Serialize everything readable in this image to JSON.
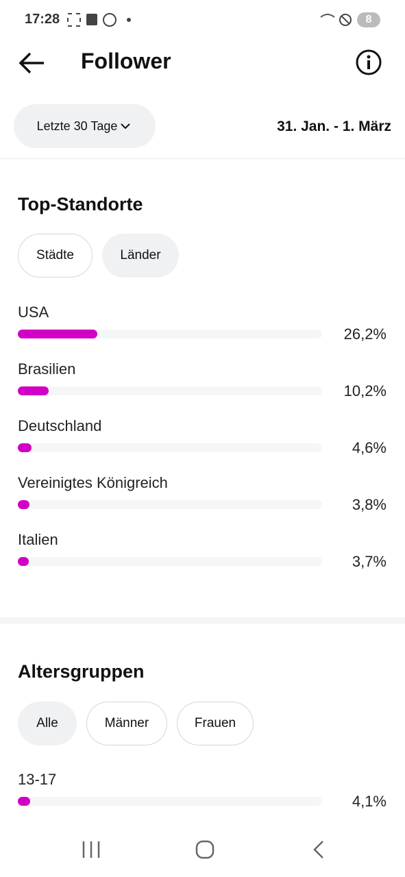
{
  "status_bar": {
    "time": "17:28",
    "badge": "8"
  },
  "header": {
    "title": "Follower"
  },
  "date_filter": {
    "range_button": "Letzte 30 Tage",
    "date_range": "31. Jan. - 1. März"
  },
  "top_locations": {
    "title": "Top-Standorte",
    "tabs": [
      "Städte",
      "Länder"
    ],
    "scale_max": 100,
    "items": [
      {
        "label": "USA",
        "value": 26.2,
        "value_label": "26,2%"
      },
      {
        "label": "Brasilien",
        "value": 10.2,
        "value_label": "10,2%"
      },
      {
        "label": "Deutschland",
        "value": 4.6,
        "value_label": "4,6%"
      },
      {
        "label": "Vereinigtes Königreich",
        "value": 3.8,
        "value_label": "3,8%"
      },
      {
        "label": "Italien",
        "value": 3.7,
        "value_label": "3,7%"
      }
    ]
  },
  "age_groups": {
    "title": "Altersgruppen",
    "tabs": [
      "Alle",
      "Männer",
      "Frauen"
    ],
    "items": [
      {
        "label": "13-17",
        "value": 4.1,
        "value_label": "4,1%"
      }
    ]
  },
  "bar_color": "#d100c6"
}
